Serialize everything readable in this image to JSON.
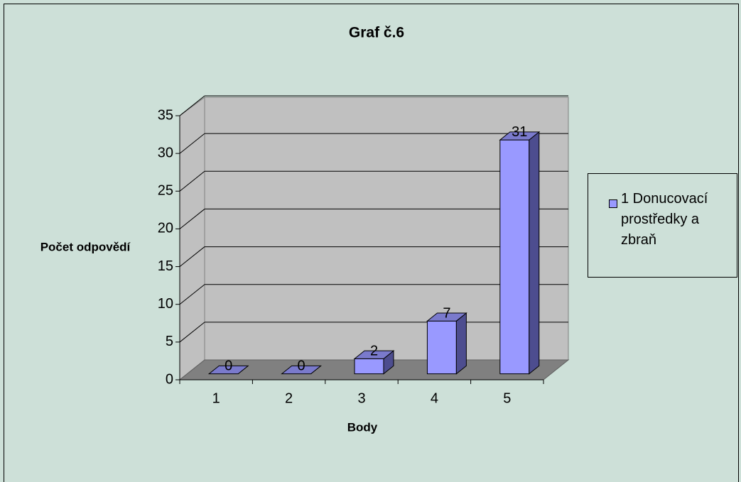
{
  "chart_data": {
    "type": "bar3d",
    "title": "Graf č.6",
    "x_label": "Body",
    "y_label": "Počet odpovědí",
    "categories": [
      "1",
      "2",
      "3",
      "4",
      "5"
    ],
    "series": [
      {
        "name": "1 Donucovací prostředky a zbraň",
        "color": "#9999ff",
        "values": [
          0,
          0,
          2,
          7,
          31
        ]
      }
    ],
    "ylim": [
      0,
      35
    ],
    "yticks": [
      0,
      5,
      10,
      15,
      20,
      25,
      30,
      35
    ],
    "grid": true,
    "legend": "right"
  }
}
